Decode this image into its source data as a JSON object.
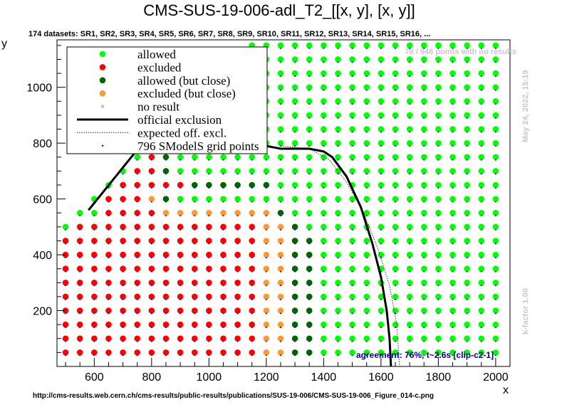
{
  "chart_data": {
    "type": "scatter",
    "title": "CMS-SUS-19-006-adl_T2_[[x, y], [x, y]]",
    "subtitle": "174 datasets: SR1, SR2, SR3, SR4, SR5, SR6, SR7, SR8, SR9, SR10, SR11, SR12, SR13, SR14, SR15, SR16, ...",
    "xlabel": "x",
    "ylabel": "y",
    "xlim": [
      470,
      2050
    ],
    "ylim": [
      0,
      1170
    ],
    "xticks": [
      600,
      800,
      1000,
      1200,
      1400,
      1600,
      1800,
      2000
    ],
    "yticks": [
      200,
      400,
      600,
      800,
      1000
    ],
    "grid": false,
    "legend_position": "top-left",
    "legend": [
      {
        "label": "allowed",
        "kind": "dot",
        "color": "#00ff00"
      },
      {
        "label": "excluded",
        "kind": "dot",
        "color": "#ff0000"
      },
      {
        "label": "allowed (but close)",
        "kind": "dot",
        "color": "#006400"
      },
      {
        "label": "excluded (but close)",
        "kind": "dot",
        "color": "#ff9933"
      },
      {
        "label": "no result",
        "kind": "smalldot",
        "color": "#c0c0c0"
      },
      {
        "label": "official exclusion",
        "kind": "line",
        "color": "#000000"
      },
      {
        "label": "expected off. excl.",
        "kind": "dotted",
        "color": "#000000"
      },
      {
        "label": "796 SModelS grid points",
        "kind": "tinydot",
        "color": "#0000cc"
      }
    ],
    "colors": {
      "allowed": "#00ff00",
      "excluded": "#ff0000",
      "allowed_close": "#006400",
      "excluded_close": "#ff9933",
      "no_result": "#c0c0c0",
      "grid_point": "#0000cc"
    },
    "grid_x": {
      "start": 500,
      "step": 50,
      "count": 31
    },
    "grid_y": {
      "start": 50,
      "step": 50,
      "count": 23
    },
    "diagonal_offset": 0,
    "official_exclusion": [
      [
        580,
        560
      ],
      [
        800,
        840
      ],
      [
        950,
        950
      ],
      [
        1000,
        955
      ],
      [
        1100,
        900
      ],
      [
        1150,
        840
      ],
      [
        1200,
        790
      ],
      [
        1250,
        780
      ],
      [
        1300,
        780
      ],
      [
        1350,
        780
      ],
      [
        1400,
        770
      ],
      [
        1430,
        750
      ],
      [
        1480,
        680
      ],
      [
        1530,
        570
      ],
      [
        1570,
        440
      ],
      [
        1600,
        320
      ],
      [
        1620,
        200
      ],
      [
        1630,
        100
      ],
      [
        1635,
        0
      ]
    ],
    "expected_exclusion": [
      [
        1250,
        790
      ],
      [
        1350,
        780
      ],
      [
        1420,
        740
      ],
      [
        1480,
        660
      ],
      [
        1540,
        550
      ],
      [
        1590,
        420
      ],
      [
        1630,
        290
      ],
      [
        1655,
        150
      ],
      [
        1665,
        0
      ]
    ],
    "excluded_rows": [
      {
        "y": 50,
        "r": [
          500,
          1150
        ],
        "o": [
          1200,
          1250
        ],
        "g": [
          1300,
          1350
        ]
      },
      {
        "y": 100,
        "r": [
          500,
          1150
        ],
        "o": [
          1200,
          1250
        ],
        "g": [
          1300,
          1350
        ]
      },
      {
        "y": 150,
        "r": [
          500,
          1150
        ],
        "o": [
          1200,
          1250
        ],
        "g": [
          1300,
          1350
        ]
      },
      {
        "y": 200,
        "r": [
          500,
          1150
        ],
        "o": [
          1200,
          1250
        ],
        "g": [
          1300,
          1350
        ]
      },
      {
        "y": 250,
        "r": [
          500,
          1150
        ],
        "o": [
          1200,
          1250
        ],
        "g": [
          1300,
          1350
        ]
      },
      {
        "y": 300,
        "r": [
          500,
          1150
        ],
        "o": [
          1200,
          1250
        ],
        "g": [
          1300,
          1350
        ]
      },
      {
        "y": 350,
        "r": [
          500,
          1150
        ],
        "o": [
          1200,
          1250
        ],
        "g": [
          1300,
          1350
        ]
      },
      {
        "y": 400,
        "r": [
          500,
          1150
        ],
        "o": [
          1200,
          1250
        ],
        "g": [
          1300,
          1350
        ]
      },
      {
        "y": 450,
        "r": [
          500,
          1150
        ],
        "o": [
          1200,
          1250
        ],
        "g": [
          1300,
          1350
        ]
      },
      {
        "y": 500,
        "r": [
          550,
          1150
        ],
        "o": [
          1200,
          1250
        ],
        "g": [
          1300,
          1300
        ]
      },
      {
        "y": 550,
        "r": [
          650,
          800
        ],
        "o": [
          850,
          1200
        ],
        "g": [
          1250,
          1250
        ]
      },
      {
        "y": 600,
        "r": [
          650,
          750
        ],
        "o": [
          800,
          800
        ],
        "g": [
          850,
          850
        ]
      },
      {
        "y": 650,
        "r": [
          700,
          900
        ],
        "o": [],
        "g": [
          950,
          1200
        ]
      },
      {
        "y": 700,
        "r": [
          750,
          800
        ],
        "o": [],
        "g": [
          850,
          850
        ]
      },
      {
        "y": 750,
        "r": [
          800,
          800
        ],
        "o": [],
        "g": [
          850,
          850
        ]
      }
    ],
    "annotation_points": "78 / 946 points with no results",
    "timestamp": "May 24, 2022, 15:19",
    "kfactor": "k-factor 1.00",
    "agreement": "agreement: 76%, t~2.6s [clip-c2-1]",
    "source_url": "http://cms-results.web.cern.ch/cms-results/public-results/publications/SUS-19-006/CMS-SUS-19-006_Figure_014-c.png"
  }
}
